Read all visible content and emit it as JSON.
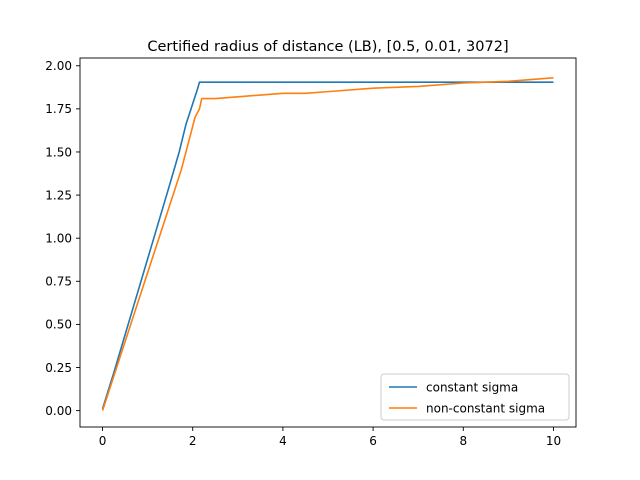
{
  "chart_data": {
    "type": "line",
    "title": "Certified radius of distance (LB), [0.5, 0.01, 3072]",
    "xlabel": "",
    "ylabel": "",
    "xlim": [
      -0.5,
      10.5
    ],
    "ylim": [
      -0.095,
      2.045
    ],
    "xticks": [
      0,
      2,
      4,
      6,
      8,
      10
    ],
    "xtick_labels": [
      "0",
      "2",
      "4",
      "6",
      "8",
      "10"
    ],
    "yticks": [
      0.0,
      0.25,
      0.5,
      0.75,
      1.0,
      1.25,
      1.5,
      1.75,
      2.0
    ],
    "ytick_labels": [
      "0.00",
      "0.25",
      "0.50",
      "0.75",
      "1.00",
      "1.25",
      "1.50",
      "1.75",
      "2.00"
    ],
    "grid": false,
    "legend_position": "lower-right",
    "series": [
      {
        "name": "constant sigma",
        "color": "#1f77b4",
        "x": [
          0,
          0.25,
          0.5,
          0.75,
          1.0,
          1.25,
          1.5,
          1.7,
          1.85,
          1.95,
          2.05,
          2.1,
          2.15,
          2.2,
          4,
          6,
          8,
          10
        ],
        "y": [
          0.01,
          0.22,
          0.44,
          0.66,
          0.88,
          1.1,
          1.32,
          1.5,
          1.66,
          1.74,
          1.82,
          1.86,
          1.905,
          1.905,
          1.905,
          1.905,
          1.905,
          1.905
        ]
      },
      {
        "name": "non-constant sigma",
        "color": "#ff7f0e",
        "x": [
          0,
          0.25,
          0.5,
          0.75,
          1.0,
          1.25,
          1.5,
          1.75,
          1.9,
          2.05,
          2.15,
          2.2,
          2.5,
          3,
          4,
          4.5,
          5,
          6,
          6.5,
          7,
          8,
          8.5,
          9,
          10
        ],
        "y": [
          0.0,
          0.2,
          0.4,
          0.6,
          0.8,
          1.0,
          1.2,
          1.4,
          1.55,
          1.7,
          1.75,
          1.81,
          1.81,
          1.82,
          1.84,
          1.84,
          1.85,
          1.87,
          1.875,
          1.88,
          1.9,
          1.905,
          1.91,
          1.93
        ]
      }
    ]
  }
}
